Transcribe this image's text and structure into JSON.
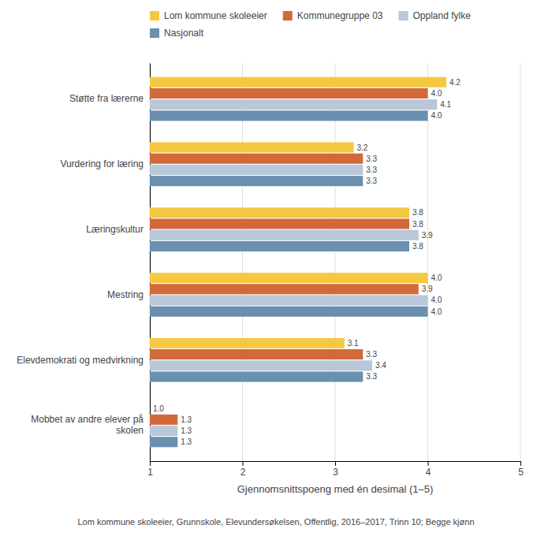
{
  "chart_data": {
    "type": "bar",
    "orientation": "horizontal",
    "categories": [
      "Støtte fra lærerne",
      "Vurdering for læring",
      "Læringskultur",
      "Mestring",
      "Elevdemokrati og medvirkning",
      "Mobbet av andre elever på\nskolen"
    ],
    "series": [
      {
        "name": "Lom kommune skoleeier",
        "color": "#F5C842",
        "values": [
          4.2,
          3.2,
          3.8,
          4.0,
          3.1,
          1.0
        ],
        "value_labels": [
          "4.2",
          "3.2",
          "3.8",
          "4.0",
          "3.1",
          "1.0"
        ]
      },
      {
        "name": "Kommunegruppe 03",
        "color": "#D2693A",
        "values": [
          4.0,
          3.3,
          3.8,
          3.9,
          3.3,
          1.3
        ],
        "value_labels": [
          "4.0",
          "3.3",
          "3.8",
          "3.9",
          "3.3",
          "1.3"
        ]
      },
      {
        "name": "Oppland fylke",
        "color": "#B8C8D8",
        "values": [
          4.1,
          3.3,
          3.9,
          4.0,
          3.4,
          1.3
        ],
        "value_labels": [
          "4.1",
          "3.3",
          "3.9",
          "4.0",
          "3.4",
          "1.3"
        ]
      },
      {
        "name": "Nasjonalt",
        "color": "#6A8FAF",
        "values": [
          4.0,
          3.3,
          3.8,
          4.0,
          3.3,
          1.3
        ],
        "value_labels": [
          "4.0",
          "3.3",
          "3.8",
          "4.0",
          "3.3",
          "1.3"
        ]
      }
    ],
    "xlim": [
      1,
      5
    ],
    "xticks": [
      1,
      2,
      3,
      4,
      5
    ],
    "xlabel": "Gjennomsnittspoeng med én desimal (1–5)",
    "footnote": "Lom kommune skoleeier, Grunnskole, Elevundersøkelsen, Offentlig, 2016–2017, Trinn 10; Begge kjønn",
    "grid": true,
    "legend": "top",
    "data_labels": true
  }
}
